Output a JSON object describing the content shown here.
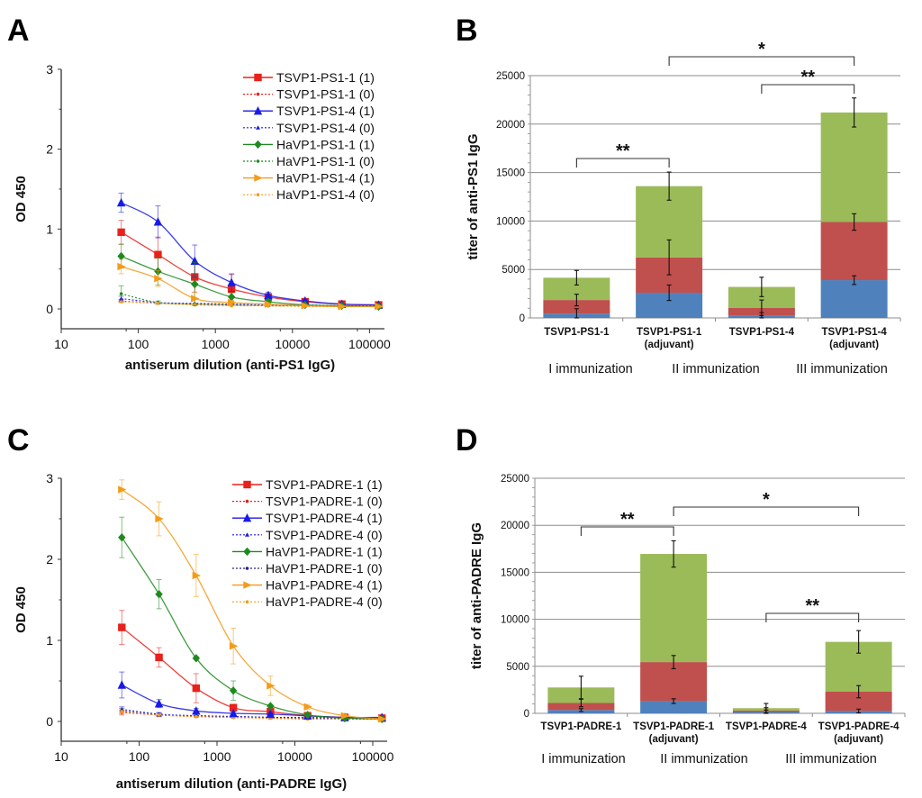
{
  "chart_data": [
    {
      "panel": "A",
      "type": "line",
      "xscale": "log",
      "xlabel": "antiserum dilution (anti-PS1 IgG)",
      "ylabel": "OD 450",
      "xlim": [
        10,
        150000
      ],
      "ylim": [
        -0.25,
        3
      ],
      "xticks": [
        "10",
        "100",
        "1000",
        "10000",
        "100000"
      ],
      "yticks": [
        "0",
        "1",
        "2",
        "3"
      ],
      "legend_position": "top-right",
      "x": [
        60,
        180,
        540,
        1620,
        4860,
        14580,
        43740,
        131220
      ],
      "series": [
        {
          "name": "TSVP1-PS1-1 (1)",
          "color": "#e8211b",
          "style": "solid",
          "marker": "square",
          "values": [
            0.96,
            0.68,
            0.4,
            0.25,
            0.15,
            0.09,
            0.06,
            0.05
          ],
          "errors": [
            0.15,
            0.22,
            0.19,
            0.18,
            0.04,
            0.02,
            0.01,
            0.01
          ]
        },
        {
          "name": "TSVP1-PS1-1 (0)",
          "color": "#e8211b",
          "style": "dotted",
          "marker": "dot",
          "values": [
            0.1,
            0.07,
            0.06,
            0.05,
            0.04,
            0.04,
            0.03,
            0.03
          ],
          "errors": [
            0.02,
            0.01,
            0.01,
            0.01,
            0.01,
            0.01,
            0.01,
            0.01
          ]
        },
        {
          "name": "TSVP1-PS1-4 (1)",
          "color": "#1a1ae6",
          "style": "solid",
          "marker": "triangle",
          "values": [
            1.33,
            1.09,
            0.6,
            0.33,
            0.17,
            0.1,
            0.06,
            0.05
          ],
          "errors": [
            0.12,
            0.2,
            0.2,
            0.11,
            0.04,
            0.02,
            0.01,
            0.01
          ]
        },
        {
          "name": "TSVP1-PS1-4 (0)",
          "color": "#1a1ae6",
          "style": "dotted",
          "marker": "triangle-small",
          "values": [
            0.13,
            0.08,
            0.07,
            0.06,
            0.05,
            0.05,
            0.04,
            0.04
          ],
          "errors": [
            0.03,
            0.01,
            0.01,
            0.01,
            0.01,
            0.01,
            0.01,
            0.01
          ]
        },
        {
          "name": "HaVP1-PS1-1 (1)",
          "color": "#1e8a1e",
          "style": "solid",
          "marker": "diamond",
          "values": [
            0.66,
            0.47,
            0.31,
            0.15,
            0.09,
            0.05,
            0.04,
            0.03
          ],
          "errors": [
            0.15,
            0.17,
            0.27,
            0.05,
            0.02,
            0.01,
            0.01,
            0.01
          ]
        },
        {
          "name": "HaVP1-PS1-1 (0)",
          "color": "#1e8a1e",
          "style": "dotted",
          "marker": "dot",
          "values": [
            0.19,
            0.08,
            0.06,
            0.05,
            0.04,
            0.04,
            0.03,
            0.03
          ],
          "errors": [
            0.1,
            0.02,
            0.01,
            0.01,
            0.01,
            0.01,
            0.01,
            0.01
          ]
        },
        {
          "name": "HaVP1-PS1-4 (1)",
          "color": "#f39b1b",
          "style": "solid",
          "marker": "triangle-right",
          "values": [
            0.53,
            0.38,
            0.13,
            0.08,
            0.06,
            0.04,
            0.03,
            0.03
          ],
          "errors": [
            0.09,
            0.1,
            0.08,
            0.03,
            0.01,
            0.01,
            0.01,
            0.01
          ]
        },
        {
          "name": "HaVP1-PS1-4 (0)",
          "color": "#f39b1b",
          "style": "dotted",
          "marker": "dot",
          "values": [
            0.09,
            0.07,
            0.05,
            0.04,
            0.04,
            0.03,
            0.03,
            0.03
          ],
          "errors": [
            0.01,
            0.01,
            0.01,
            0.01,
            0.01,
            0.01,
            0.01,
            0.01
          ]
        }
      ]
    },
    {
      "panel": "B",
      "type": "bar",
      "stacked": true,
      "ylabel": "titer of anti-PS1 IgG",
      "ylim": [
        0,
        25000
      ],
      "yticks": [
        "0",
        "5000",
        "10000",
        "15000",
        "20000",
        "25000"
      ],
      "grid": true,
      "categories": [
        [
          "TSVP1-PS1-1",
          ""
        ],
        [
          "TSVP1-PS1-1",
          "(adjuvant)"
        ],
        [
          "TSVP1-PS1-4",
          ""
        ],
        [
          "TSVP1-PS1-4",
          "(adjuvant)"
        ]
      ],
      "series": [
        {
          "name": "I immunization",
          "color": "#4f81bd",
          "values": [
            450,
            2600,
            250,
            3900
          ],
          "errors": [
            500,
            800,
            300,
            450
          ]
        },
        {
          "name": "II immunization",
          "color": "#c0504d",
          "values": [
            1400,
            3650,
            800,
            6000
          ],
          "errors": [
            600,
            1800,
            800,
            850
          ]
        },
        {
          "name": "III immunization",
          "color": "#9bbb59",
          "values": [
            2300,
            7350,
            2150,
            11300
          ],
          "errors": [
            750,
            1450,
            1000,
            1500
          ]
        }
      ],
      "immunization_labels": [
        "I immunization",
        "II immunization",
        "III immunization"
      ],
      "significance": [
        {
          "from": 0,
          "to": 1,
          "label": "**"
        },
        {
          "from": 2,
          "to": 3,
          "label": "**"
        },
        {
          "from": 1,
          "to": 3,
          "label": "*"
        }
      ]
    },
    {
      "panel": "C",
      "type": "line",
      "xscale": "log",
      "xlabel": "antiserum dilution (anti-PADRE IgG)",
      "ylabel": "OD 450",
      "xlim": [
        10,
        150000
      ],
      "ylim": [
        -0.25,
        3
      ],
      "xticks": [
        "10",
        "100",
        "1000",
        "10000",
        "100000"
      ],
      "yticks": [
        "0",
        "1",
        "2",
        "3"
      ],
      "legend_position": "top-right",
      "x": [
        60,
        180,
        540,
        1620,
        4860,
        14580,
        43740,
        131220
      ],
      "series": [
        {
          "name": "TSVP1-PADRE-1 (1)",
          "color": "#e8211b",
          "style": "solid",
          "marker": "square",
          "values": [
            1.16,
            0.79,
            0.41,
            0.17,
            0.12,
            0.07,
            0.05,
            0.04
          ],
          "errors": [
            0.21,
            0.12,
            0.18,
            0.03,
            0.02,
            0.01,
            0.01,
            0.01
          ]
        },
        {
          "name": "TSVP1-PADRE-1 (0)",
          "color": "#e8211b",
          "style": "dotted",
          "marker": "dot",
          "values": [
            0.11,
            0.08,
            0.06,
            0.05,
            0.04,
            0.03,
            0.03,
            0.03
          ],
          "errors": [
            0.03,
            0.02,
            0.01,
            0.01,
            0.01,
            0.01,
            0.01,
            0.01
          ]
        },
        {
          "name": "TSVP1-PADRE-4 (1)",
          "color": "#1a1ae6",
          "style": "solid",
          "marker": "triangle",
          "values": [
            0.45,
            0.22,
            0.13,
            0.1,
            0.09,
            0.07,
            0.05,
            0.05
          ],
          "errors": [
            0.16,
            0.05,
            0.03,
            0.02,
            0.02,
            0.01,
            0.01,
            0.01
          ]
        },
        {
          "name": "TSVP1-PADRE-4 (0)",
          "color": "#1a1ae6",
          "style": "dotted",
          "marker": "triangle-small",
          "values": [
            0.15,
            0.09,
            0.07,
            0.06,
            0.05,
            0.05,
            0.04,
            0.04
          ],
          "errors": [
            0.03,
            0.02,
            0.01,
            0.01,
            0.01,
            0.01,
            0.01,
            0.01
          ]
        },
        {
          "name": "HaVP1-PADRE-1 (1)",
          "color": "#1e8a1e",
          "style": "solid",
          "marker": "diamond",
          "values": [
            2.27,
            1.57,
            0.78,
            0.38,
            0.19,
            0.08,
            0.04,
            0.03
          ],
          "errors": [
            0.25,
            0.18,
            0.02,
            0.12,
            0.02,
            0.01,
            0.01,
            0.01
          ]
        },
        {
          "name": "HaVP1-PADRE-1 (0)",
          "color": "#23238a",
          "style": "dotted",
          "marker": "dot",
          "values": [
            0.13,
            0.08,
            0.07,
            0.06,
            0.05,
            0.04,
            0.03,
            0.03
          ],
          "errors": [
            0.03,
            0.02,
            0.01,
            0.01,
            0.01,
            0.01,
            0.01,
            0.01
          ]
        },
        {
          "name": "HaVP1-PADRE-4 (1)",
          "color": "#f39b1b",
          "style": "solid",
          "marker": "triangle-right",
          "values": [
            2.86,
            2.5,
            1.8,
            0.93,
            0.44,
            0.18,
            0.07,
            0.03
          ],
          "errors": [
            0.12,
            0.21,
            0.26,
            0.22,
            0.12,
            0.03,
            0.01,
            0.01
          ]
        },
        {
          "name": "HaVP1-PADRE-4 (0)",
          "color": "#f39b1b",
          "style": "dotted",
          "marker": "dot",
          "values": [
            0.12,
            0.08,
            0.06,
            0.05,
            0.04,
            0.03,
            0.03,
            0.03
          ],
          "errors": [
            0.02,
            0.01,
            0.01,
            0.01,
            0.01,
            0.01,
            0.01,
            0.01
          ]
        }
      ]
    },
    {
      "panel": "D",
      "type": "bar",
      "stacked": true,
      "ylabel": "titer of anti-PADRE IgG",
      "ylim": [
        0,
        25000
      ],
      "yticks": [
        "0",
        "5000",
        "10000",
        "15000",
        "20000",
        "25000"
      ],
      "grid": true,
      "categories": [
        [
          "TSVP1-PADRE-1",
          ""
        ],
        [
          "TSVP1-PADRE-1",
          "(adjuvant)"
        ],
        [
          "TSVP1-PADRE-4",
          ""
        ],
        [
          "TSVP1-PADRE-4",
          "(adjuvant)"
        ]
      ],
      "series": [
        {
          "name": "I immunization",
          "color": "#4f81bd",
          "values": [
            350,
            1300,
            150,
            250
          ],
          "errors": [
            150,
            250,
            200,
            200
          ]
        },
        {
          "name": "II immunization",
          "color": "#c0504d",
          "values": [
            750,
            4150,
            150,
            2050
          ],
          "errors": [
            400,
            700,
            300,
            650
          ]
        },
        {
          "name": "III immunization",
          "color": "#9bbb59",
          "values": [
            1650,
            11500,
            250,
            5300
          ],
          "errors": [
            1200,
            1400,
            500,
            1200
          ]
        }
      ],
      "immunization_labels": [
        "I immunization",
        "II immunization",
        "III immunization"
      ],
      "significance": [
        {
          "from": 0,
          "to": 1,
          "label": "**"
        },
        {
          "from": 1,
          "to": 3,
          "label": "*"
        },
        {
          "from": 2,
          "to": 3,
          "label": "**"
        }
      ]
    }
  ],
  "panel_labels": [
    "A",
    "B",
    "C",
    "D"
  ]
}
